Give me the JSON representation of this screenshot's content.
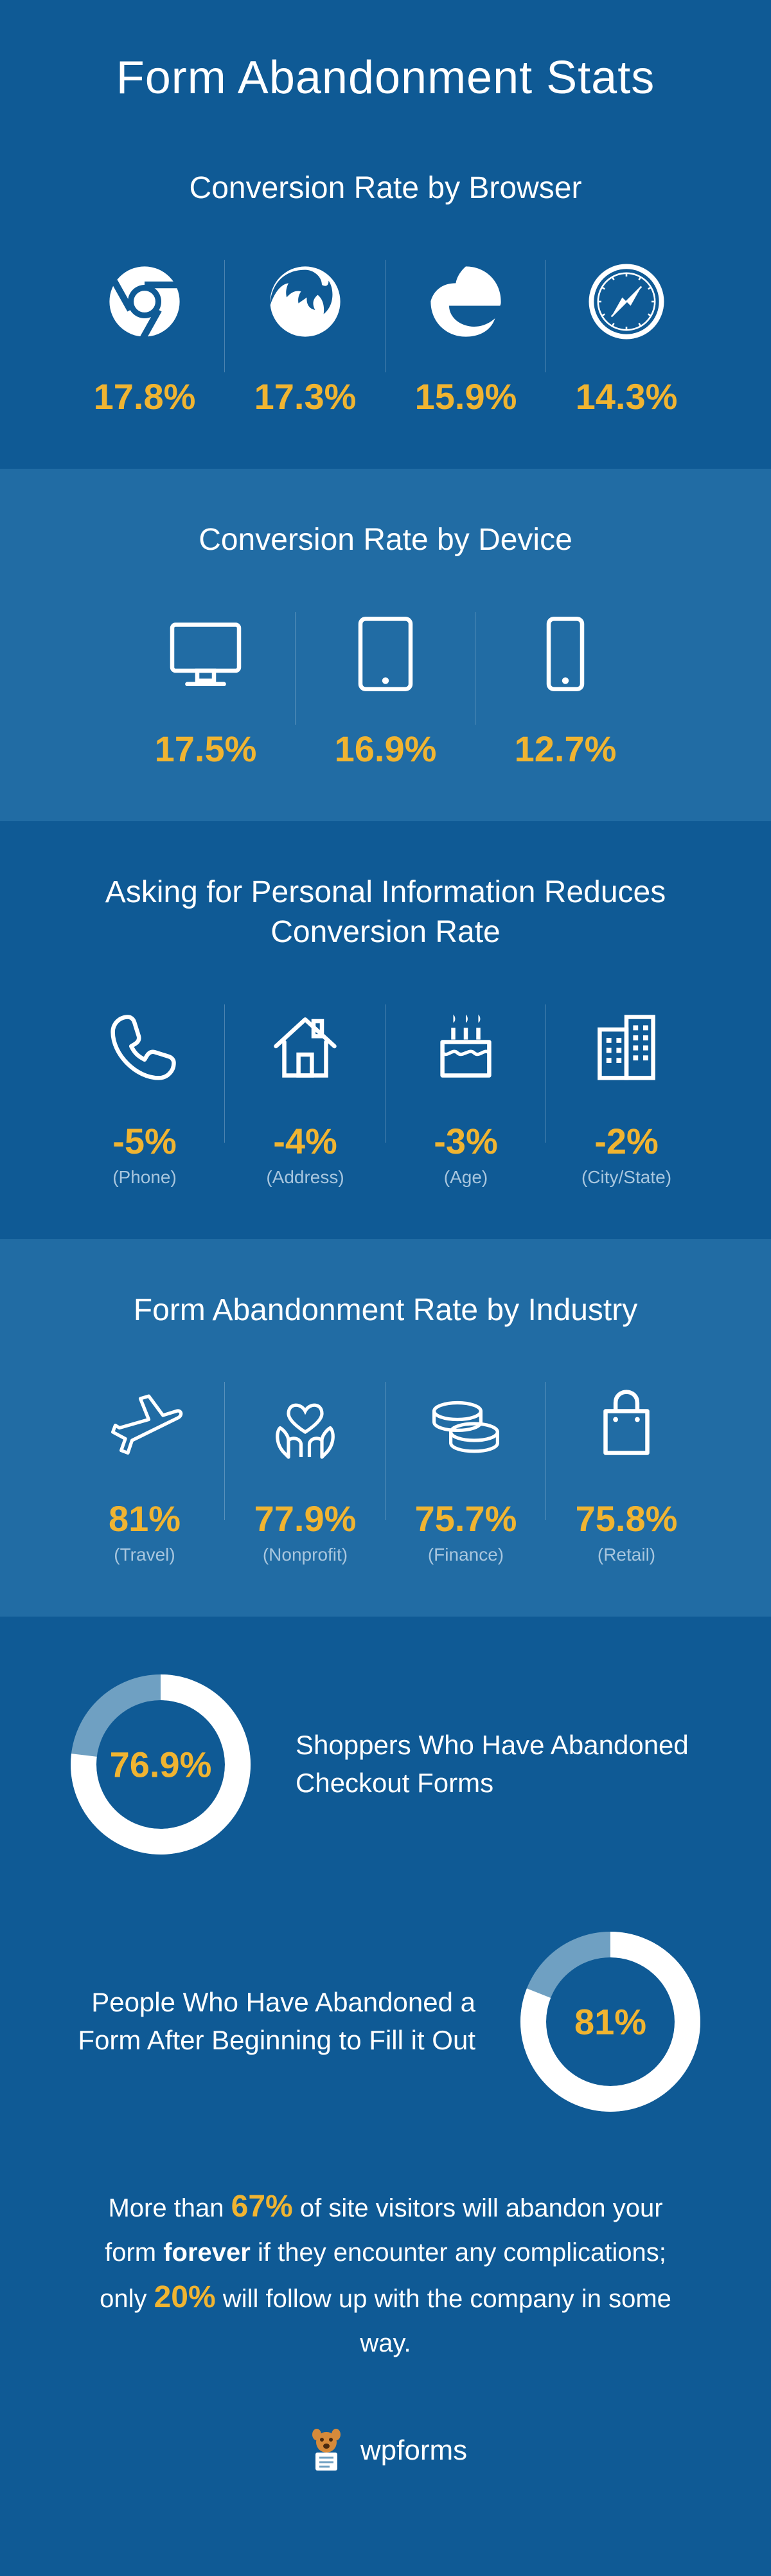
{
  "title": "Form Abandonment Stats",
  "colors": {
    "bg_dark": "#0f5a95",
    "bg_light": "#216ca4",
    "accent": "#f0b431",
    "text_white": "#ffffff",
    "text_muted": "#a8c6de",
    "donut_track": "#6fa0c2",
    "icon_stroke": "#ffffff"
  },
  "typography": {
    "main_title_fontsize": 72,
    "section_title_fontsize": 48,
    "stat_val_fontsize": 56,
    "stat_sub_fontsize": 28,
    "donut_text_fontsize": 42,
    "closing_fontsize": 40
  },
  "sections": {
    "browser": {
      "title": "Conversion Rate by Browser",
      "items": [
        {
          "icon": "chrome",
          "value": "17.8%"
        },
        {
          "icon": "firefox",
          "value": "17.3%"
        },
        {
          "icon": "edge",
          "value": "15.9%"
        },
        {
          "icon": "safari",
          "value": "14.3%"
        }
      ]
    },
    "device": {
      "title": "Conversion Rate by Device",
      "items": [
        {
          "icon": "desktop",
          "value": "17.5%"
        },
        {
          "icon": "tablet",
          "value": "16.9%"
        },
        {
          "icon": "phone",
          "value": "12.7%"
        }
      ]
    },
    "personal": {
      "title": "Asking for Personal Information Reduces Conversion Rate",
      "items": [
        {
          "icon": "phone-call",
          "value": "-5%",
          "sub": "(Phone)"
        },
        {
          "icon": "house",
          "value": "-4%",
          "sub": "(Address)"
        },
        {
          "icon": "cake",
          "value": "-3%",
          "sub": "(Age)"
        },
        {
          "icon": "building",
          "value": "-2%",
          "sub": "(City/State)"
        }
      ]
    },
    "industry": {
      "title": "Form Abandonment Rate by Industry",
      "items": [
        {
          "icon": "plane",
          "value": "81%",
          "sub": "(Travel)"
        },
        {
          "icon": "hands-heart",
          "value": "77.9%",
          "sub": "(Nonprofit)"
        },
        {
          "icon": "coins",
          "value": "75.7%",
          "sub": "(Finance)"
        },
        {
          "icon": "shopping-bag",
          "value": "75.8%",
          "sub": "(Retail)"
        }
      ]
    },
    "donuts": [
      {
        "percent": 76.9,
        "label": "76.9%",
        "text": "Shoppers Who Have Abandoned Checkout Forms",
        "reverse": false
      },
      {
        "percent": 81,
        "label": "81%",
        "text": "People Who Have Abandoned a Form After Beginning to Fill it Out",
        "reverse": true
      }
    ],
    "closing": {
      "prefix": "More than ",
      "hl1": "67%",
      "mid1": " of site visitors will abandon your form ",
      "bold": "forever",
      "mid2": " if they encounter any complications; only ",
      "hl2": "20%",
      "suffix": " will follow up with the company in some way."
    },
    "footer": {
      "brand": "wpforms"
    }
  },
  "donut_style": {
    "radius": 120,
    "stroke_width": 40
  }
}
